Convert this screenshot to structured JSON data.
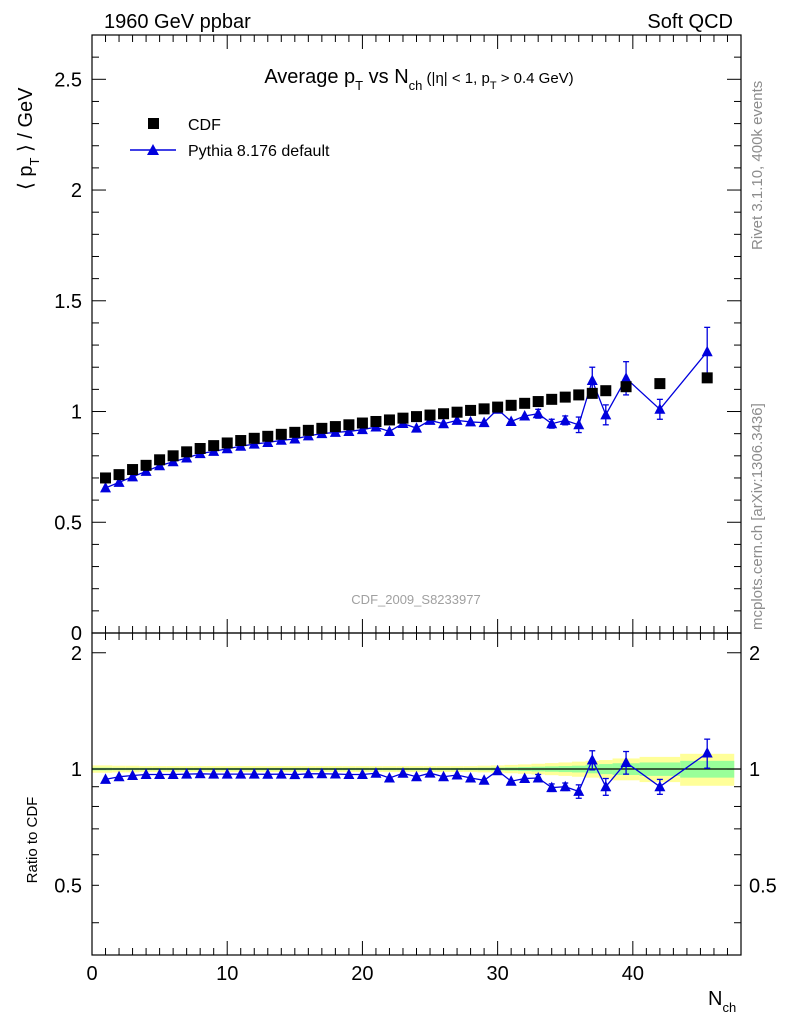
{
  "header": {
    "left": "1960 GeV ppbar",
    "right": "Soft QCD"
  },
  "side_labels": {
    "rivet": "Rivet 3.1.10,  400k events",
    "mcplots": "mcplots.cern.ch [arXiv:1306.3436]"
  },
  "analysis_ref": "CDF_2009_S8233977",
  "chart_data": [
    {
      "type": "scatter",
      "title_parts": {
        "main": "Average p",
        "main_sub": "T",
        "vs": " vs N",
        "vs_sub": "ch",
        "cuts_a": " (|η| < 1, p",
        "cuts_sub": "T",
        "cuts_b": " > 0.4 GeV)"
      },
      "ylabel_parts": {
        "open": "⟨ p",
        "sub": "T",
        "close": " ⟩ / GeV"
      },
      "xlim": [
        0,
        48
      ],
      "ylim": [
        0,
        2.7
      ],
      "yticks": [
        "0",
        "0.5",
        "1",
        "1.5",
        "2",
        "2.5"
      ],
      "legend": {
        "position": "top-left",
        "entries": [
          "CDF",
          "Pythia 8.176 default"
        ]
      },
      "colors": {
        "data": "#000000",
        "mc": "#0000dd"
      },
      "series": [
        {
          "name": "CDF",
          "marker": "square",
          "x": [
            1,
            2,
            3,
            4,
            5,
            6,
            7,
            8,
            9,
            10,
            11,
            12,
            13,
            14,
            15,
            16,
            17,
            18,
            19,
            20,
            21,
            22,
            23,
            24,
            25,
            26,
            27,
            28,
            29,
            30,
            31,
            32,
            33,
            34,
            35,
            36,
            37,
            38,
            39.5,
            42,
            45.5
          ],
          "y": [
            0.7,
            0.715,
            0.738,
            0.757,
            0.782,
            0.8,
            0.818,
            0.833,
            0.846,
            0.858,
            0.869,
            0.879,
            0.888,
            0.897,
            0.906,
            0.915,
            0.924,
            0.932,
            0.94,
            0.948,
            0.955,
            0.962,
            0.97,
            0.977,
            0.984,
            0.99,
            0.997,
            1.005,
            1.012,
            1.02,
            1.028,
            1.037,
            1.045,
            1.055,
            1.065,
            1.075,
            1.082,
            1.094,
            1.112,
            1.126,
            1.152
          ]
        },
        {
          "name": "Pythia 8.176 default",
          "marker": "triangle",
          "x": [
            1,
            2,
            3,
            4,
            5,
            6,
            7,
            8,
            9,
            10,
            11,
            12,
            13,
            14,
            15,
            16,
            17,
            18,
            19,
            20,
            21,
            22,
            23,
            24,
            25,
            26,
            27,
            28,
            29,
            30,
            31,
            32,
            33,
            34,
            35,
            36,
            37,
            38,
            39.5,
            42,
            45.5
          ],
          "y": [
            0.655,
            0.68,
            0.705,
            0.73,
            0.755,
            0.773,
            0.79,
            0.81,
            0.82,
            0.832,
            0.843,
            0.853,
            0.86,
            0.87,
            0.876,
            0.89,
            0.9,
            0.906,
            0.91,
            0.918,
            0.93,
            0.91,
            0.946,
            0.925,
            0.96,
            0.945,
            0.96,
            0.953,
            0.95,
            1.01,
            0.955,
            0.98,
            0.99,
            0.945,
            0.96,
            0.94,
            1.14,
            0.985,
            1.15,
            1.01,
            1.27
          ],
          "yerr": [
            0,
            0,
            0,
            0,
            0,
            0,
            0,
            0,
            0,
            0,
            0,
            0,
            0,
            0,
            0,
            0,
            0,
            0,
            0,
            0,
            0,
            0,
            0,
            0,
            0,
            0,
            0,
            0,
            0,
            0,
            0,
            0,
            0.02,
            0.02,
            0.02,
            0.035,
            0.06,
            0.045,
            0.075,
            0.045,
            0.11
          ]
        }
      ]
    },
    {
      "type": "scatter",
      "ylabel": "Ratio to CDF",
      "xlabel_parts": {
        "main": "N",
        "sub": "ch"
      },
      "xlim": [
        0,
        48
      ],
      "ylim": [
        0.33,
        2.25
      ],
      "yticks": [
        "0.5",
        "1",
        "2"
      ],
      "xticks": [
        "0",
        "10",
        "20",
        "30",
        "40"
      ],
      "bands": {
        "x_edges": [
          0,
          1.5,
          2.5,
          3.5,
          4.5,
          5.5,
          6.5,
          7.5,
          8.5,
          9.5,
          10.5,
          11.5,
          12.5,
          13.5,
          14.5,
          15.5,
          16.5,
          17.5,
          18.5,
          19.5,
          20.5,
          21.5,
          22.5,
          23.5,
          24.5,
          25.5,
          26.5,
          27.5,
          28.5,
          29.5,
          30.5,
          31.5,
          32.5,
          33.5,
          34.5,
          35.5,
          36.5,
          37.5,
          38.5,
          40.5,
          43.5,
          47.5
        ],
        "yellow_halfwidth": [
          0.022,
          0.02,
          0.02,
          0.018,
          0.018,
          0.018,
          0.018,
          0.018,
          0.018,
          0.018,
          0.018,
          0.018,
          0.018,
          0.018,
          0.018,
          0.018,
          0.018,
          0.018,
          0.018,
          0.018,
          0.018,
          0.018,
          0.018,
          0.018,
          0.018,
          0.018,
          0.018,
          0.018,
          0.02,
          0.022,
          0.025,
          0.028,
          0.032,
          0.036,
          0.04,
          0.045,
          0.05,
          0.055,
          0.065,
          0.075,
          0.095
        ],
        "green_halfwidth": [
          0.008,
          0.007,
          0.007,
          0.007,
          0.007,
          0.007,
          0.007,
          0.007,
          0.007,
          0.007,
          0.007,
          0.007,
          0.007,
          0.007,
          0.007,
          0.007,
          0.007,
          0.007,
          0.007,
          0.007,
          0.007,
          0.007,
          0.007,
          0.007,
          0.007,
          0.007,
          0.007,
          0.007,
          0.008,
          0.009,
          0.01,
          0.012,
          0.014,
          0.016,
          0.018,
          0.02,
          0.025,
          0.03,
          0.035,
          0.04,
          0.05
        ],
        "colors": {
          "yellow": "#ffff99",
          "green": "#99ff99"
        }
      },
      "series": [
        {
          "name": "Pythia 8.176 default",
          "x": [
            1,
            2,
            3,
            4,
            5,
            6,
            7,
            8,
            9,
            10,
            11,
            12,
            13,
            14,
            15,
            16,
            17,
            18,
            19,
            20,
            21,
            22,
            23,
            24,
            25,
            26,
            27,
            28,
            29,
            30,
            31,
            32,
            33,
            34,
            35,
            36,
            37,
            38,
            39.5,
            42,
            45.5
          ],
          "y": [
            0.94,
            0.955,
            0.962,
            0.968,
            0.968,
            0.968,
            0.97,
            0.972,
            0.97,
            0.97,
            0.97,
            0.97,
            0.969,
            0.97,
            0.967,
            0.972,
            0.972,
            0.971,
            0.968,
            0.968,
            0.975,
            0.948,
            0.975,
            0.955,
            0.976,
            0.955,
            0.965,
            0.948,
            0.935,
            0.99,
            0.93,
            0.945,
            0.948,
            0.895,
            0.9,
            0.875,
            1.055,
            0.9,
            1.04,
            0.9,
            1.1
          ],
          "yerr": [
            0,
            0,
            0,
            0,
            0,
            0,
            0,
            0,
            0,
            0,
            0,
            0,
            0,
            0,
            0,
            0,
            0,
            0,
            0,
            0,
            0,
            0,
            0,
            0,
            0,
            0,
            0,
            0,
            0,
            0,
            0,
            0,
            0.02,
            0.02,
            0.02,
            0.035,
            0.06,
            0.045,
            0.07,
            0.04,
            0.095
          ]
        }
      ]
    }
  ]
}
